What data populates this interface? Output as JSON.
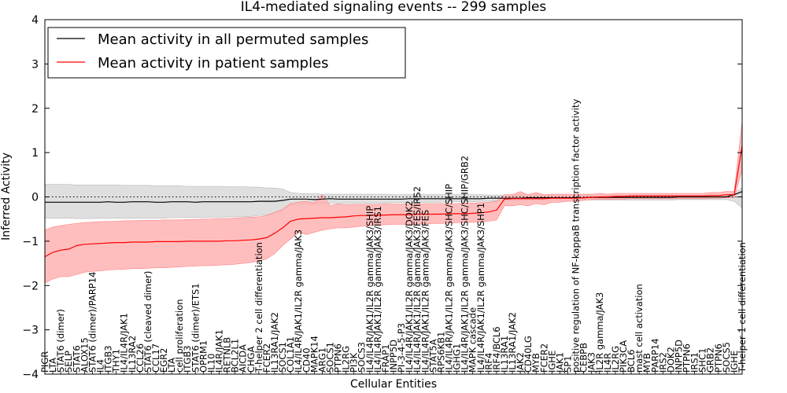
{
  "chart_data": {
    "type": "line",
    "title": "IL4-mediated signaling events -- 299 samples",
    "xlabel": "Cellular Entities",
    "ylabel": "Inferred Activity",
    "ylim": [
      -4,
      4
    ],
    "yticks": [
      -4,
      -3,
      -2,
      -1,
      0,
      1,
      2,
      3,
      4
    ],
    "grid": false,
    "reference_line": 0,
    "legend": {
      "position": "top-left",
      "entries": [
        {
          "name": "Mean activity in all permuted samples",
          "color": "#000000"
        },
        {
          "name": "Mean activity in patient samples",
          "color": "#ff0000"
        }
      ]
    },
    "categories": [
      "PIGR",
      "LTA",
      "STAT6 (dimer)",
      "SELP",
      "STAT6",
      "ALOX15",
      "STAT6 (dimer)/PARP14",
      "IL4",
      "ITGB3",
      "THY1",
      "IL4/IL4R/JAK1",
      "IL13RA2",
      "CCL26",
      "STAT6 (cleaved dimer)",
      "CCL17",
      "EGR2",
      "LTA",
      "cell proliferation",
      "ITGB3",
      "STAT6 (dimer)/ETS1",
      "OPRM1",
      "IL10",
      "IL4R/JAK1",
      "RETNLB",
      "BCL2L1",
      "AICDA",
      "CHGA",
      "T-helper 2 cell differentiation",
      "FCER2",
      "IL13RA1/JAK2",
      "SOCS1",
      "COL1A1",
      "IL4/IL4R/JAK1/IL2R gamma/JAK3",
      "CD40",
      "MAPK14",
      "ARG1",
      "SOCS1",
      "PTPN6",
      "IL2RG",
      "PI3K",
      "SOCS3",
      "IL4/IL4R/JAK1/IL2R gamma/JAK3/SHIP",
      "IL4/IL4R/JAK1/IL2R gamma/JAK3/IRS1",
      "FRAP1",
      "INPP5D",
      "PI-3-4-5-P3",
      "IL4/IL4R/JAK1/IL2R gamma/JAK3/DOK2",
      "IL4/IL4R/JAK1/IL2R gamma/JAK3/FES/IRS2",
      "IL4/IL4R/JAK1/IL2R gamma/JAK3/FES",
      "STAT5A",
      "RPS6KB1",
      "IL4/IL4R/JAK1/IL2R gamma/JAK3/SHC/SHIP",
      "IGHG1",
      "IL4/IL4R/JAK1/IL2R gamma/JAK3/SHC/SHIP/GRB2",
      "MAPK cascade",
      "IL4/IL4R/JAK1/IL2R gamma/JAK3/SHP1",
      "IRF4",
      "IRF4/BCL6",
      "IL13RA1",
      "IL13RA1/JAK2",
      "JAK2",
      "CD40LG",
      "MYB",
      "FCER2",
      "IGHE",
      "JAK1",
      "SP1",
      "positive regulation of NF-kappaB transcription factor activity",
      "CEBPB",
      "JAK3",
      "IL2R gamma/JAK3",
      "IL4R",
      "IL2RG",
      "PIK3CA",
      "BCL6",
      "mast cell activation",
      "MYB",
      "PARP14",
      "IRS2",
      "DOK2",
      "INPP5D",
      "PTPN6",
      "IRS1",
      "SHC1",
      "GRB2",
      "PTPN6",
      "SOCS5",
      "IGHE",
      "T-helper 1 cell differentiation"
    ],
    "series": [
      {
        "name": "Mean activity in all permuted samples",
        "color": "#000000",
        "values": [
          -0.12,
          -0.12,
          -0.12,
          -0.12,
          -0.12,
          -0.12,
          -0.12,
          -0.12,
          -0.11,
          -0.12,
          -0.12,
          -0.11,
          -0.11,
          -0.11,
          -0.12,
          -0.12,
          -0.11,
          -0.11,
          -0.11,
          -0.12,
          -0.11,
          -0.11,
          -0.11,
          -0.11,
          -0.11,
          -0.11,
          -0.11,
          -0.1,
          -0.1,
          -0.1,
          -0.08,
          -0.05,
          -0.05,
          -0.05,
          -0.06,
          -0.05,
          -0.04,
          -0.05,
          -0.05,
          -0.05,
          -0.05,
          -0.05,
          -0.05,
          -0.05,
          -0.05,
          -0.05,
          -0.04,
          -0.04,
          -0.04,
          -0.04,
          -0.04,
          -0.04,
          -0.04,
          -0.04,
          -0.04,
          -0.04,
          -0.03,
          -0.03,
          -0.03,
          -0.03,
          -0.03,
          -0.02,
          -0.02,
          -0.02,
          -0.02,
          -0.02,
          -0.02,
          -0.02,
          -0.02,
          -0.01,
          -0.01,
          -0.01,
          -0.01,
          -0.01,
          -0.01,
          -0.01,
          -0.01,
          -0.01,
          -0.01,
          -0.01,
          0.0,
          0.0,
          0.0,
          0.0,
          0.0,
          0.0,
          0.0,
          0.05,
          0.12
        ],
        "band_lower": [
          -0.48,
          -0.48,
          -0.48,
          -0.48,
          -0.49,
          -0.49,
          -0.49,
          -0.48,
          -0.48,
          -0.48,
          -0.48,
          -0.48,
          -0.48,
          -0.48,
          -0.48,
          -0.48,
          -0.47,
          -0.47,
          -0.47,
          -0.47,
          -0.46,
          -0.46,
          -0.46,
          -0.45,
          -0.45,
          -0.45,
          -0.44,
          -0.42,
          -0.4,
          -0.38,
          -0.3,
          -0.2,
          -0.18,
          -0.17,
          -0.17,
          -0.16,
          -0.15,
          -0.15,
          -0.15,
          -0.14,
          -0.14,
          -0.14,
          -0.14,
          -0.14,
          -0.13,
          -0.13,
          -0.13,
          -0.13,
          -0.12,
          -0.12,
          -0.12,
          -0.11,
          -0.11,
          -0.11,
          -0.11,
          -0.1,
          -0.1,
          -0.09,
          -0.09,
          -0.09,
          -0.09,
          -0.08,
          -0.08,
          -0.08,
          -0.07,
          -0.07,
          -0.07,
          -0.07,
          -0.07,
          -0.07,
          -0.07,
          -0.07,
          -0.07,
          -0.07,
          -0.07,
          -0.07,
          -0.07,
          -0.07,
          -0.07,
          -0.07,
          -0.06,
          -0.06,
          -0.06,
          -0.06,
          -0.06,
          -0.06,
          -0.06,
          -0.1,
          -0.25
        ],
        "band_upper": [
          0.28,
          0.28,
          0.28,
          0.28,
          0.27,
          0.27,
          0.27,
          0.27,
          0.27,
          0.27,
          0.26,
          0.26,
          0.26,
          0.26,
          0.25,
          0.25,
          0.25,
          0.25,
          0.24,
          0.24,
          0.24,
          0.24,
          0.24,
          0.23,
          0.23,
          0.23,
          0.22,
          0.22,
          0.2,
          0.2,
          0.18,
          0.1,
          0.08,
          0.07,
          0.07,
          0.06,
          0.06,
          0.06,
          0.06,
          0.06,
          0.06,
          0.06,
          0.06,
          0.06,
          0.05,
          0.05,
          0.05,
          0.05,
          0.05,
          0.05,
          0.05,
          0.05,
          0.05,
          0.05,
          0.05,
          0.05,
          0.04,
          0.04,
          0.04,
          0.04,
          0.04,
          0.04,
          0.04,
          0.04,
          0.04,
          0.04,
          0.04,
          0.04,
          0.04,
          0.04,
          0.04,
          0.04,
          0.04,
          0.04,
          0.04,
          0.04,
          0.04,
          0.04,
          0.04,
          0.04,
          0.04,
          0.04,
          0.04,
          0.04,
          0.04,
          0.04,
          0.04,
          0.1,
          0.2
        ]
      },
      {
        "name": "Mean activity in patient samples",
        "color": "#ff0000",
        "values": [
          -1.35,
          -1.25,
          -1.2,
          -1.18,
          -1.1,
          -1.07,
          -1.06,
          -1.05,
          -1.04,
          -1.03,
          -1.03,
          -1.02,
          -1.02,
          -1.02,
          -1.01,
          -1.01,
          -1.01,
          -1.01,
          -1.0,
          -1.0,
          -1.0,
          -1.0,
          -1.0,
          -0.99,
          -0.99,
          -0.98,
          -0.97,
          -0.95,
          -0.92,
          -0.82,
          -0.7,
          -0.55,
          -0.5,
          -0.49,
          -0.48,
          -0.47,
          -0.47,
          -0.46,
          -0.45,
          -0.43,
          -0.42,
          -0.42,
          -0.41,
          -0.41,
          -0.4,
          -0.4,
          -0.4,
          -0.39,
          -0.39,
          -0.39,
          -0.39,
          -0.38,
          -0.38,
          -0.38,
          -0.37,
          -0.36,
          -0.34,
          -0.3,
          -0.05,
          -0.04,
          -0.04,
          -0.04,
          -0.04,
          -0.04,
          -0.03,
          -0.03,
          -0.03,
          -0.03,
          -0.02,
          -0.01,
          0.0,
          0.0,
          0.01,
          0.01,
          0.02,
          0.02,
          0.02,
          0.02,
          0.02,
          0.02,
          0.02,
          0.02,
          0.02,
          0.02,
          0.03,
          0.03,
          0.05,
          0.05,
          1.15
        ],
        "band_lower": [
          -1.95,
          -1.85,
          -1.8,
          -1.8,
          -1.75,
          -1.7,
          -1.68,
          -1.67,
          -1.65,
          -1.64,
          -1.63,
          -1.62,
          -1.62,
          -1.61,
          -1.6,
          -1.6,
          -1.59,
          -1.58,
          -1.57,
          -1.56,
          -1.55,
          -1.55,
          -1.54,
          -1.53,
          -1.52,
          -1.5,
          -1.48,
          -1.45,
          -1.4,
          -1.28,
          -1.1,
          -0.95,
          -0.8,
          -0.85,
          -0.8,
          -0.75,
          -0.72,
          -0.7,
          -0.7,
          -0.68,
          -0.66,
          -0.65,
          -0.64,
          -0.63,
          -0.62,
          -0.62,
          -0.62,
          -0.61,
          -0.61,
          -0.6,
          -0.6,
          -0.59,
          -0.58,
          -0.58,
          -0.57,
          -0.56,
          -0.55,
          -0.52,
          -0.2,
          -0.2,
          -0.18,
          -0.2,
          -0.15,
          -0.18,
          -0.12,
          -0.12,
          -0.1,
          -0.1,
          -0.08,
          -0.06,
          -0.05,
          -0.06,
          -0.05,
          -0.05,
          -0.04,
          -0.04,
          -0.04,
          -0.04,
          -0.04,
          -0.04,
          -0.04,
          -0.04,
          -0.04,
          -0.04,
          -0.03,
          -0.03,
          -0.02,
          -0.02,
          0.6
        ],
        "band_upper": [
          -0.75,
          -0.68,
          -0.65,
          -0.62,
          -0.6,
          -0.58,
          -0.57,
          -0.56,
          -0.55,
          -0.55,
          -0.54,
          -0.54,
          -0.53,
          -0.53,
          -0.53,
          -0.52,
          -0.52,
          -0.52,
          -0.51,
          -0.51,
          -0.5,
          -0.5,
          -0.49,
          -0.49,
          -0.48,
          -0.47,
          -0.46,
          -0.45,
          -0.42,
          -0.35,
          -0.28,
          -0.15,
          -0.12,
          -0.1,
          -0.14,
          0.05,
          -0.2,
          -0.16,
          -0.18,
          -0.17,
          -0.17,
          -0.17,
          -0.17,
          -0.16,
          -0.16,
          -0.16,
          -0.16,
          -0.16,
          -0.15,
          -0.15,
          -0.15,
          -0.15,
          -0.15,
          -0.14,
          -0.14,
          -0.13,
          -0.12,
          -0.1,
          0.05,
          0.05,
          0.12,
          0.05,
          0.1,
          0.05,
          0.06,
          0.06,
          0.06,
          0.06,
          0.06,
          0.06,
          0.08,
          0.06,
          0.08,
          0.08,
          0.08,
          0.08,
          0.08,
          0.08,
          0.08,
          0.08,
          0.08,
          0.08,
          0.08,
          0.08,
          0.1,
          0.1,
          0.12,
          0.12,
          1.7
        ]
      }
    ]
  }
}
